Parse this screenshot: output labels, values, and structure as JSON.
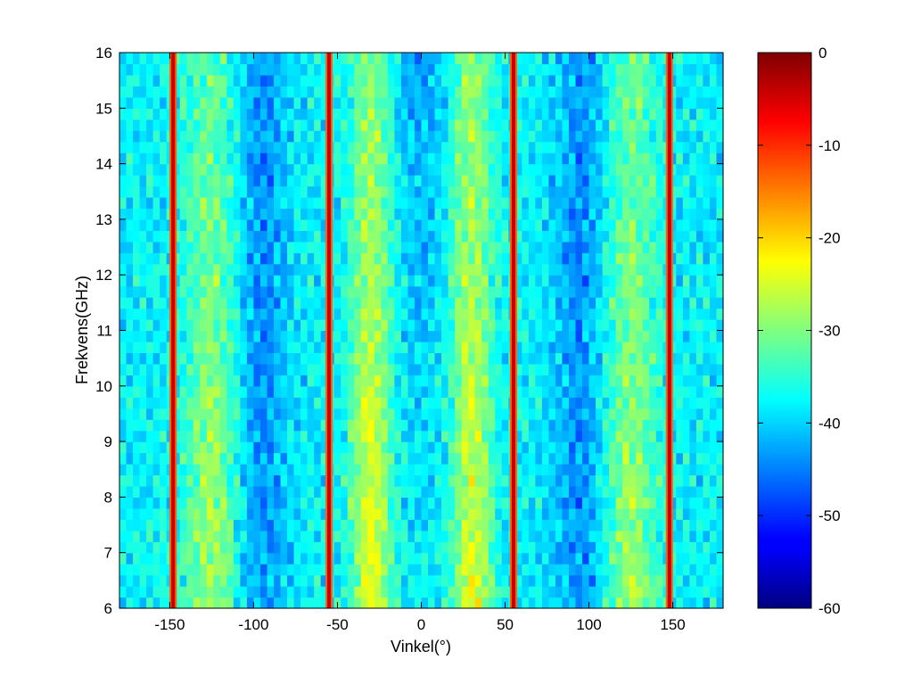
{
  "chart_data": {
    "type": "heatmap",
    "title": "",
    "xlabel": "Vinkel(°)",
    "ylabel": "Frekvens(GHz)",
    "xlim": [
      -180,
      180
    ],
    "ylim": [
      6,
      16
    ],
    "x_ticks": [
      -150,
      -100,
      -50,
      0,
      50,
      100,
      150
    ],
    "y_ticks": [
      6,
      7,
      8,
      9,
      10,
      11,
      12,
      13,
      14,
      15,
      16
    ],
    "colormap": "jet",
    "colorbar": {
      "range": [
        -60,
        0
      ],
      "ticks": [
        0,
        -10,
        -20,
        -30,
        -40,
        -50,
        -60
      ]
    },
    "specular_peaks_deg": [
      -148,
      -55,
      55,
      148
    ],
    "peak_level_db": 0,
    "broad_lobes_deg": [
      -30,
      30,
      -125,
      125
    ],
    "background_level_db": -38
  }
}
